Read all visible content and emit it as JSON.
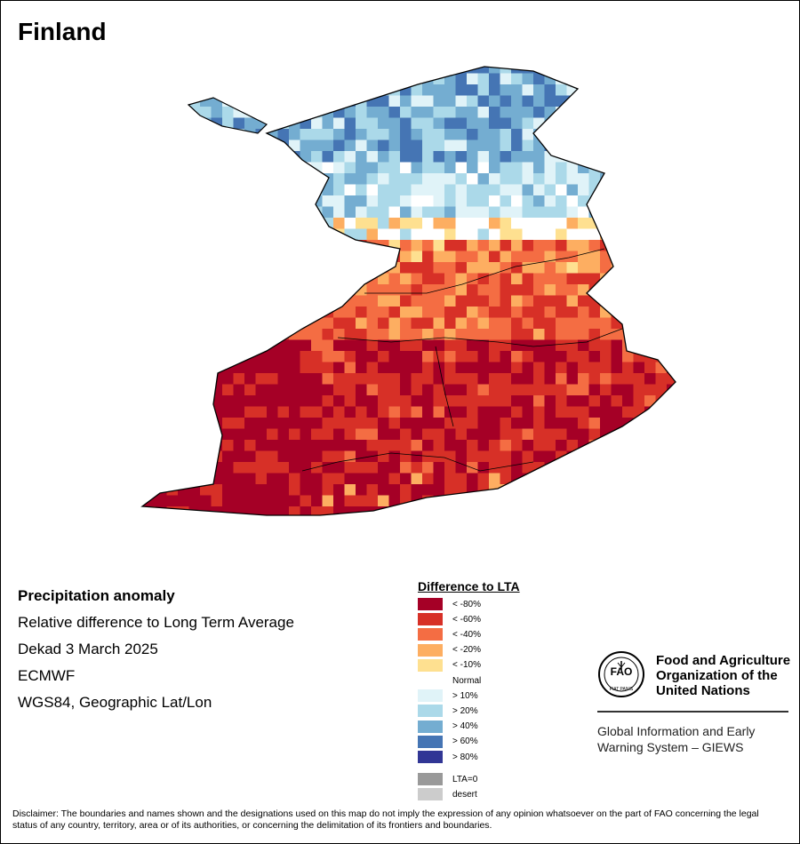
{
  "title": "Finland",
  "info": {
    "heading": "Precipitation anomaly",
    "line1": "Relative difference to Long Term Average",
    "line2": "Dekad 3 March 2025",
    "line3": "ECMWF",
    "line4": "WGS84, Geographic Lat/Lon"
  },
  "legend": {
    "title": "Difference to LTA",
    "items": [
      {
        "label": "< -80%",
        "color": "#a50026"
      },
      {
        "label": "< -60%",
        "color": "#d73027"
      },
      {
        "label": "< -40%",
        "color": "#f46d43"
      },
      {
        "label": "< -20%",
        "color": "#fdae61"
      },
      {
        "label": "< -10%",
        "color": "#fee090"
      },
      {
        "label": "Normal",
        "color": "#ffffff"
      },
      {
        "label": "> 10%",
        "color": "#e0f3f8"
      },
      {
        "label": "> 20%",
        "color": "#abd9e9"
      },
      {
        "label": "> 40%",
        "color": "#74add1"
      },
      {
        "label": "> 60%",
        "color": "#4575b4"
      },
      {
        "label": "> 80%",
        "color": "#313695"
      }
    ],
    "extra": [
      {
        "label": "LTA=0",
        "color": "#999999"
      },
      {
        "label": "desert",
        "color": "#cccccc"
      }
    ]
  },
  "org": {
    "emblem_text": "FIAT PANIS",
    "name": "Food and Agriculture Organization of the United Nations",
    "program": "Global Information and Early Warning System – GIEWS"
  },
  "disclaimer": "Disclaimer: The boundaries and names shown and the designations used on this map do not imply the expression of any opinion whatsoever on the part of FAO concerning the legal status of any country, territory, area or of its authorities, or concerning the delimitation of its frontiers and boundaries."
}
